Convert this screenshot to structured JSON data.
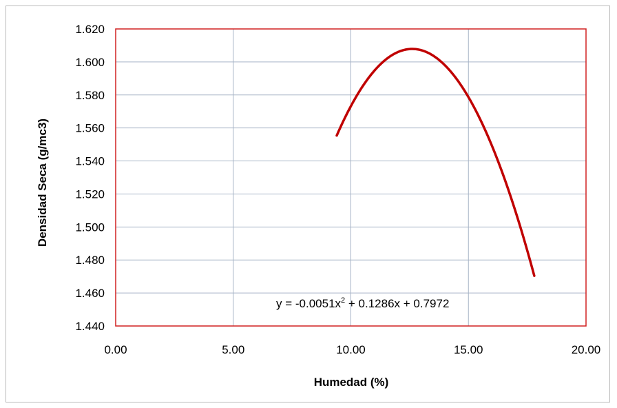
{
  "chart_data": {
    "type": "line",
    "title": "",
    "xlabel": "Humedad (%)",
    "ylabel": "Densidad Seca (g/mc3)",
    "xlim": [
      0,
      20
    ],
    "ylim": [
      1.44,
      1.62
    ],
    "x_ticks": [
      "0.00",
      "5.00",
      "10.00",
      "15.00",
      "20.00"
    ],
    "y_ticks": [
      "1.620",
      "1.600",
      "1.580",
      "1.560",
      "1.540",
      "1.520",
      "1.500",
      "1.480",
      "1.460",
      "1.440"
    ],
    "grid": true,
    "legend": "none",
    "series": [
      {
        "values_description": "",
        "coefficients": [
          -0.0051,
          0.1286,
          0.7972
        ],
        "x_range": [
          9.4,
          17.8
        ]
      }
    ],
    "equation_label": "y = -0.0051x",
    "equation_sup": "2",
    "equation_rest": " + 0.1286x + 0.7972",
    "colors": {
      "series": "#c00000",
      "plot_border": "#d02020",
      "grid": "#a6b3c6"
    }
  }
}
